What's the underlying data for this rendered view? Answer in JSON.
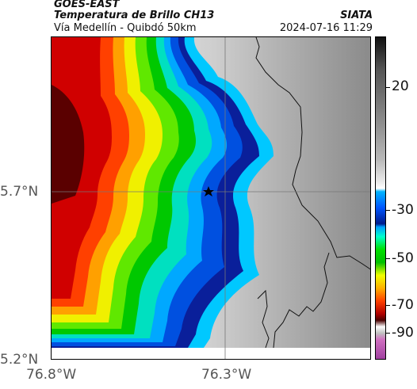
{
  "header": {
    "satellite": "GOES-EAST",
    "product": "Temperatura de Brillo CH13",
    "route": "Vía Medellín - Quibdó 50km",
    "org": "SIATA",
    "datetime": "2024-07-16 11:29"
  },
  "axes": {
    "y_labels": [
      "5.7°N",
      "5.2°N"
    ],
    "x_labels": [
      "76.8°W",
      "76.3°W"
    ]
  },
  "colorbar": {
    "labels": [
      "20",
      "-30",
      "-50",
      "-70",
      "-90"
    ]
  },
  "colors": {
    "cold_cloud_top": "#4a0000",
    "warm_clear": "#e0e0e0",
    "marker": "#000000"
  }
}
